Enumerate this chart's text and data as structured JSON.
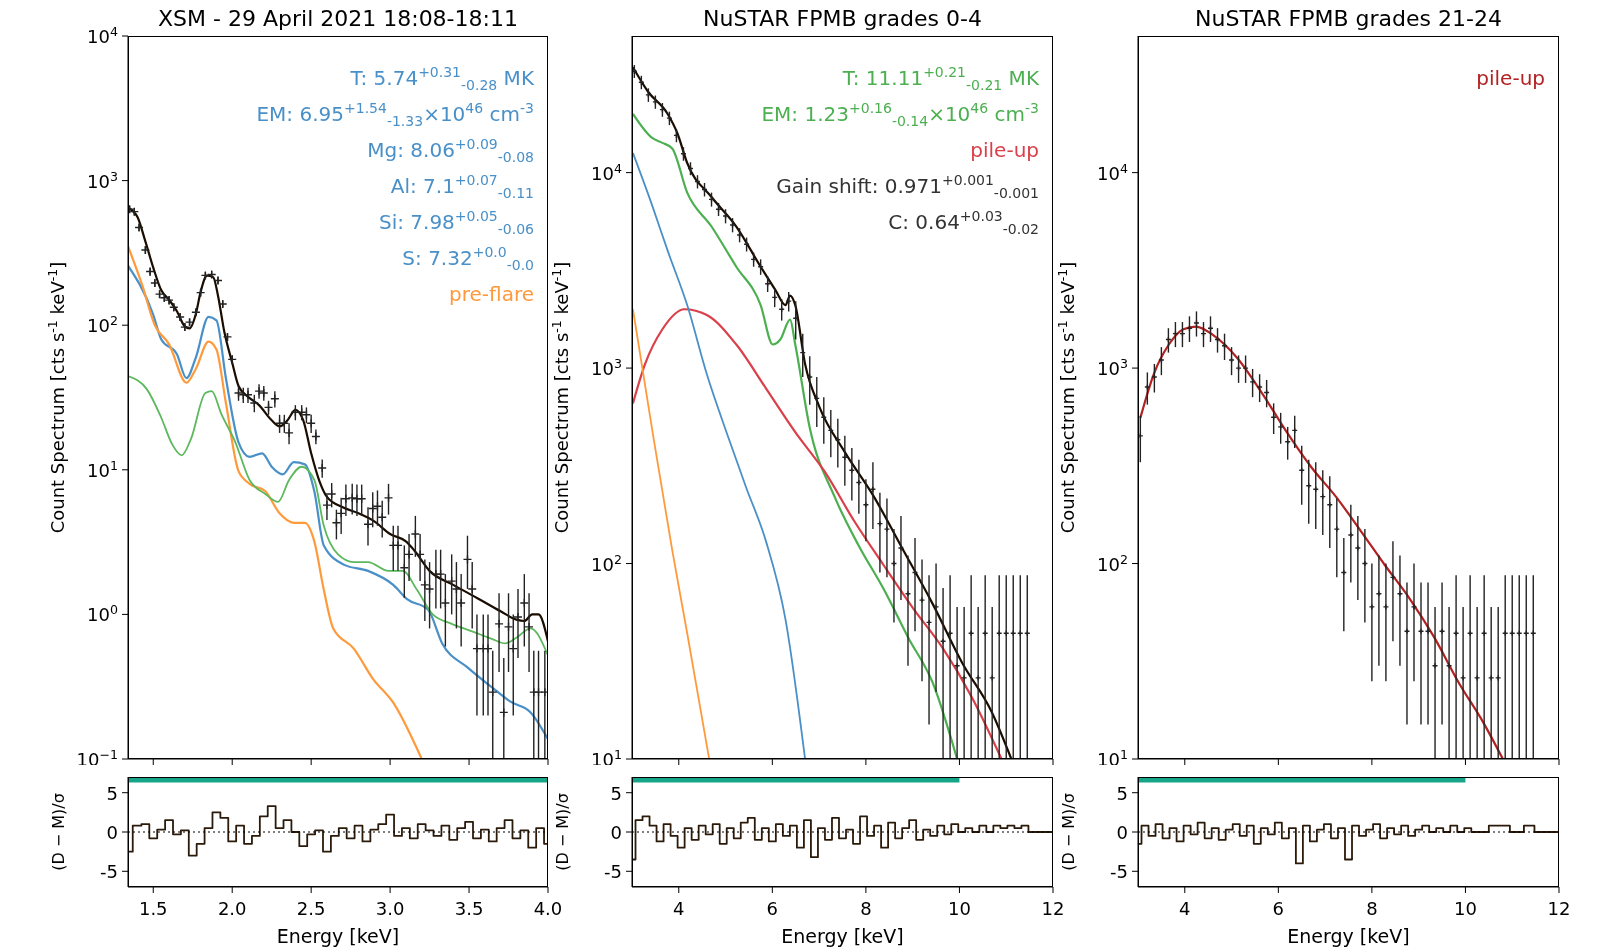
{
  "chart_data": [
    {
      "type": "line",
      "title": "XSM - 29 April 2021 18:08-18:11",
      "ylabel": "Count Spectrum [cts s$^{-1}$ keV$^{-1}$]",
      "log": "y",
      "tick_labels": "y",
      "legend": "top right",
      "xlim": [
        1.34,
        4.0
      ],
      "xticks": [
        1.5,
        2,
        2.5,
        3,
        3.5,
        4
      ],
      "ylim": [
        0.1,
        10000
      ],
      "yticks": [
        {
          "value": 0.1,
          "label": "10$^{−1}$"
        },
        {
          "value": 1,
          "label": "10$^{0}$"
        },
        {
          "value": 10,
          "label": "10$^{1}$"
        },
        {
          "value": 100,
          "label": "10$^{2}$"
        },
        {
          "value": 1000,
          "label": "10$^{3}$"
        },
        {
          "value": 10000,
          "label": "10$^{4}$"
        }
      ],
      "series": [
        {
          "type": "scatter",
          "marker": "cross",
          "color": "#222222",
          "x": [
            1.35,
            1.38,
            1.41,
            1.45,
            1.48,
            1.51,
            1.54,
            1.57,
            1.6,
            1.63,
            1.67,
            1.7,
            1.73,
            1.77,
            1.8,
            1.83,
            1.87,
            1.91,
            1.94,
            1.97,
            2.0,
            2.04,
            2.07,
            2.1,
            2.14,
            2.17,
            2.2,
            2.23,
            2.27,
            2.3,
            2.33,
            2.36,
            2.4,
            2.44,
            2.47,
            2.5,
            2.53,
            2.57,
            2.6,
            2.63,
            2.66,
            2.69,
            2.72,
            2.76,
            2.79,
            2.82,
            2.86,
            2.89,
            2.92,
            2.95,
            2.99,
            3.02,
            3.05,
            3.09,
            3.12,
            3.16,
            3.19,
            3.22,
            3.25,
            3.29,
            3.32,
            3.35,
            3.39,
            3.42,
            3.45,
            3.49,
            3.52,
            3.55,
            3.59,
            3.62,
            3.65,
            3.69,
            3.72,
            3.75,
            3.78,
            3.81,
            3.85,
            3.88,
            3.91,
            3.94,
            3.98
          ],
          "values": [
            634,
            610,
            474,
            331,
            235,
            196,
            164,
            155,
            149,
            133,
            114,
            97,
            105,
            123,
            168,
            221,
            224,
            204,
            140,
            83,
            58,
            34,
            33,
            33,
            29,
            35,
            34,
            27,
            31,
            21,
            21,
            18,
            25,
            25,
            24,
            21,
            17,
            10.3,
            5.7,
            6.8,
            4.3,
            5.0,
            6.3,
            6.4,
            6.3,
            6.3,
            4.2,
            5.4,
            5.6,
            4.7,
            6.4,
            3.0,
            3.0,
            2.1,
            2.6,
            3.6,
            2.6,
            1.6,
            1.5,
            1.9,
            1.9,
            1.2,
            1.7,
            1.5,
            1.2,
            2.4,
            1.5,
            0.58,
            0.58,
            0.58,
            0.29,
            0.86,
            0.21,
            0.82,
            0.58,
            0.96,
            1.2,
            0.82,
            0.29,
            0.29,
            0.29
          ],
          "errors": [
            35,
            35,
            25,
            20,
            15,
            12,
            10,
            10,
            10,
            8,
            7,
            6,
            6,
            7,
            10,
            12,
            12,
            12,
            8,
            5,
            4,
            4,
            4,
            4,
            4,
            4,
            4,
            3,
            4,
            3,
            3,
            3,
            3,
            3,
            3,
            3,
            2,
            1.5,
            1.2,
            1.3,
            1,
            [
              3.6,
              6.4
            ],
            [
              4.8,
              7.9
            ],
            [
              4.9,
              8.0
            ],
            [
              4.8,
              7.9
            ],
            [
              4.8,
              7.9
            ],
            [
              3.0,
              5.5
            ],
            [
              4.0,
              7.0
            ],
            [
              4.1,
              7.2
            ],
            [
              3.4,
              6.1
            ],
            [
              4.9,
              8.0
            ],
            [
              2.0,
              4.1
            ],
            [
              2.0,
              4.1
            ],
            [
              1.3,
              3.0
            ],
            [
              1.7,
              3.6
            ],
            [
              2.5,
              4.8
            ],
            [
              1.7,
              3.6
            ],
            [
              0.9,
              2.4
            ],
            [
              0.8,
              2.3
            ],
            [
              1.1,
              2.8
            ],
            [
              1.1,
              2.8
            ],
            [
              0.6,
              1.9
            ],
            [
              1.0,
              2.6
            ],
            [
              0.8,
              2.3
            ],
            [
              0.6,
              1.9
            ],
            [
              1.5,
              3.5
            ],
            [
              0.8,
              2.3
            ],
            [
              0.2,
              1.0
            ],
            [
              0.2,
              1.0
            ],
            [
              0.2,
              1.0
            ],
            [
              0.1,
              0.56
            ],
            [
              0.4,
              1.4
            ],
            [
              0.1,
              0.5
            ],
            [
              0.4,
              1.4
            ],
            [
              0.2,
              1.0
            ],
            [
              0.5,
              1.5
            ],
            [
              0.6,
              1.9
            ],
            [
              0.4,
              1.4
            ],
            [
              0.1,
              0.56
            ],
            [
              0.1,
              0.56
            ],
            [
              0.1,
              0.56
            ]
          ]
        },
        {
          "color": "#1a0d00",
          "x": [
            1.34,
            1.4,
            1.45,
            1.5,
            1.55,
            1.6,
            1.65,
            1.7,
            1.73,
            1.77,
            1.8,
            1.84,
            1.88,
            1.91,
            1.95,
            2.0,
            2.04,
            2.1,
            2.17,
            2.25,
            2.3,
            2.35,
            2.4,
            2.45,
            2.5,
            2.55,
            2.6,
            2.7,
            2.8,
            2.9,
            3.0,
            3.1,
            3.15,
            3.25,
            3.4,
            3.55,
            3.7,
            3.8,
            3.85,
            3.9,
            3.94,
            4.0
          ],
          "values": [
            650,
            560,
            380,
            250,
            175,
            150,
            125,
            98,
            95,
            120,
            170,
            220,
            215,
            160,
            90,
            55,
            38,
            32,
            28,
            22,
            20,
            22,
            26,
            22,
            13,
            8.5,
            6.5,
            5.5,
            5.0,
            4.4,
            3.6,
            3.2,
            2.8,
            2.0,
            1.6,
            1.3,
            1.05,
            0.92,
            0.9,
            1.0,
            1.0,
            0.65
          ]
        },
        {
          "name": "T: 5.74$^{+0.31}$$_{-0.28}$ MK\nEM: 6.95$^{+1.54}$$_{-1.33}$×10$^{46}$ cm$^{-3}$\nMg: 8.06$^{+0.09}$$_{-0.08}$\nAl: 7.1$^{+0.07}$$_{-0.11}$\nSi: 7.98$^{+0.05}$$_{-0.06}$\nS: 7.32$^{+0.0}$$_{-0.0}$",
          "color": "#4a90c8",
          "x": [
            1.34,
            1.5,
            1.55,
            1.65,
            1.71,
            1.77,
            1.85,
            1.9,
            1.96,
            2.04,
            2.11,
            2.19,
            2.25,
            2.32,
            2.39,
            2.46,
            2.52,
            2.58,
            2.71,
            2.86,
            3.02,
            3.11,
            3.24,
            3.33,
            3.49,
            3.65,
            3.76,
            3.89,
            4.0
          ],
          "values": [
            258,
            118,
            80,
            63,
            43,
            60,
            114,
            108,
            43,
            15.5,
            12.3,
            13,
            10.5,
            9.3,
            11.3,
            10.9,
            7.1,
            3.0,
            2.2,
            2.0,
            1.6,
            1.27,
            1.08,
            0.63,
            0.43,
            0.31,
            0.25,
            0.21,
            0.137
          ]
        },
        {
          "name": "pre-flare",
          "color": "#ff9a3c",
          "x": [
            1.34,
            1.43,
            1.51,
            1.6,
            1.71,
            1.77,
            1.85,
            1.9,
            1.96,
            2.04,
            2.11,
            2.21,
            2.3,
            2.39,
            2.46,
            2.52,
            2.58,
            2.64,
            2.77,
            2.89,
            3.02,
            3.2
          ],
          "values": [
            352,
            189,
            100,
            74,
            40,
            50,
            77,
            68,
            29,
            9.8,
            8.0,
            7.1,
            5.0,
            4.3,
            4.3,
            3.2,
            1.48,
            0.8,
            0.58,
            0.36,
            0.245,
            0.1
          ]
        },
        {
          "color": "#5cb85c",
          "x": [
            1.34,
            1.46,
            1.55,
            1.62,
            1.68,
            1.74,
            1.83,
            1.87,
            1.93,
            2.02,
            2.11,
            2.21,
            2.29,
            2.36,
            2.44,
            2.52,
            2.58,
            2.67,
            2.77,
            2.86,
            2.99,
            3.08,
            3.17,
            3.27,
            3.39,
            3.51,
            3.64,
            3.73,
            3.8,
            3.89,
            4.0
          ],
          "values": [
            44.5,
            36,
            23,
            15,
            12.6,
            16.5,
            34,
            35,
            24.5,
            15.5,
            8.5,
            6.8,
            6.0,
            8.5,
            10.5,
            8.5,
            4.1,
            2.6,
            2.3,
            2.3,
            2.0,
            2.0,
            1.48,
            1.0,
            0.86,
            0.77,
            0.68,
            0.63,
            0.69,
            0.8,
            0.52
          ]
        }
      ]
    },
    {
      "type": "line",
      "title": "NuSTAR FPMB grades 0-4",
      "ylabel": "Count Spectrum [cts s$^{-1}$ keV$^{-1}$]",
      "log": "y",
      "tick_labels": "y",
      "legend": "top right",
      "xlim": [
        3,
        12
      ],
      "xticks": [
        4,
        6,
        8,
        10,
        12
      ],
      "ylim": [
        10,
        50000
      ],
      "yticks": [
        {
          "value": 10,
          "label": "10$^{1}$"
        },
        {
          "value": 100,
          "label": "10$^{2}$"
        },
        {
          "value": 1000,
          "label": "10$^{3}$"
        },
        {
          "value": 10000,
          "label": "10$^{4}$"
        }
      ],
      "annotations": [
        "Gain shift: 0.971$^{+0.001}$$_{-0.001}$",
        "C: 0.64$^{+0.03}$$_{-0.02}$"
      ],
      "series": [
        {
          "type": "scatter",
          "marker": "cross",
          "color": "#222222",
          "x": [
            3.05,
            3.2,
            3.35,
            3.5,
            3.65,
            3.8,
            3.95,
            4.1,
            4.25,
            4.4,
            4.55,
            4.7,
            4.85,
            5.0,
            5.15,
            5.3,
            5.45,
            5.6,
            5.75,
            5.9,
            6.05,
            6.2,
            6.35,
            6.5,
            6.65,
            6.8,
            6.95,
            7.1,
            7.25,
            7.4,
            7.55,
            7.7,
            7.85,
            8.0,
            8.15,
            8.3,
            8.45,
            8.6,
            8.75,
            8.9,
            9.05,
            9.2,
            9.35,
            9.5,
            9.65,
            9.8,
            9.95,
            10.1,
            10.25,
            10.4,
            10.55,
            10.7,
            10.85,
            11.0,
            11.15,
            11.3,
            11.45
          ],
          "values": [
            33000,
            29000,
            25000,
            23000,
            21000,
            19000,
            15500,
            12500,
            10500,
            9000,
            8200,
            7300,
            6500,
            6000,
            5400,
            4800,
            4300,
            3600,
            3300,
            2700,
            2300,
            2000,
            2200,
            1800,
            1200,
            900,
            700,
            560,
            480,
            430,
            350,
            300,
            260,
            200,
            240,
            160,
            150,
            100,
            120,
            70,
            90,
            65,
            50,
            60,
            40,
            44,
            30,
            26,
            44,
            26,
            44,
            26,
            44,
            44,
            44,
            44,
            44
          ],
          "errors": [
            2500,
            2300,
            2000,
            1800,
            1700,
            1500,
            1200,
            1000,
            800,
            700,
            650,
            600,
            500,
            500,
            450,
            400,
            350,
            300,
            300,
            250,
            250,
            250,
            250,
            400,
            300,
            250,
            200,
            150,
            130,
            120,
            100,
            90,
            80,
            70,
            [
              150,
              330
            ],
            [
              90,
              230
            ],
            [
              85,
              215
            ],
            [
              50,
              150
            ],
            [
              65,
              175
            ],
            [
              30,
              110
            ],
            [
              45,
              135
            ],
            [
              25,
              105
            ],
            [
              15,
              87
            ],
            [
              22,
              100
            ],
            [
              10,
              75
            ],
            [
              10,
              87
            ],
            [
              10,
              60
            ],
            [
              10,
              60
            ],
            [
              10,
              87
            ],
            [
              10,
              60
            ],
            [
              10,
              87
            ],
            [
              10,
              60
            ],
            [
              10,
              87
            ],
            [
              10,
              87
            ],
            [
              10,
              87
            ],
            [
              10,
              87
            ],
            [
              10,
              87
            ]
          ]
        },
        {
          "color": "#1a0d00",
          "x": [
            3.02,
            3.34,
            3.76,
            3.97,
            4.18,
            4.7,
            5.23,
            5.75,
            6.07,
            6.28,
            6.38,
            6.49,
            6.7,
            7.01,
            7.54,
            8.17,
            8.8,
            9.43,
            10.06,
            10.69,
            11.11
          ],
          "values": [
            34600,
            26000,
            20000,
            15900,
            11200,
            7500,
            5300,
            3300,
            2500,
            2100,
            2350,
            2100,
            1050,
            630,
            375,
            220,
            117,
            62,
            31,
            17.4,
            10
          ]
        },
        {
          "name": "T: 11.11$^{+0.21}$$_{-0.21}$ MK\nEM: 1.23$^{+0.16}$$_{-0.14}$×10$^{46}$ cm$^{-3}$",
          "color": "#4caf50",
          "x": [
            3.02,
            3.44,
            3.65,
            3.86,
            4.18,
            4.7,
            5.23,
            5.75,
            6.01,
            6.17,
            6.38,
            6.49,
            6.8,
            7.33,
            7.85,
            8.38,
            8.9,
            9.43,
            9.95
          ],
          "values": [
            20000,
            15000,
            14200,
            13300,
            7900,
            5300,
            3300,
            2100,
            1320,
            1400,
            1770,
            1320,
            495,
            220,
            123,
            74,
            42,
            24.5,
            10
          ]
        },
        {
          "name": "pile-up",
          "color": "#d9404a",
          "x": [
            3.02,
            3.28,
            3.65,
            4.12,
            4.6,
            5.23,
            5.86,
            6.49,
            7.12,
            7.75,
            8.38,
            9.01,
            9.64,
            10.27,
            10.9
          ],
          "values": [
            660,
            1050,
            1580,
            2000,
            1870,
            1320,
            790,
            470,
            295,
            165,
            98,
            59,
            37,
            20.6,
            10
          ]
        },
        {
          "color": "#4a90c8",
          "x": [
            3.02,
            3.44,
            3.76,
            4.18,
            4.6,
            5.02,
            5.44,
            5.86,
            6.28,
            6.7
          ],
          "values": [
            12600,
            6700,
            4000,
            2100,
            930,
            470,
            245,
            131,
            52,
            10
          ]
        },
        {
          "color": "#ff9a3c",
          "x": [
            3.02,
            3.44,
            3.86,
            4.18,
            4.65
          ],
          "values": [
            2000,
            470,
            117,
            44,
            10
          ]
        }
      ]
    },
    {
      "type": "line",
      "title": "NuSTAR FPMB grades 21-24",
      "ylabel": "Count Spectrum [cts s$^{-1}$ keV$^{-1}$]",
      "log": "y",
      "tick_labels": "y",
      "legend": "top right",
      "xlim": [
        3,
        12
      ],
      "xticks": [
        4,
        6,
        8,
        10,
        12
      ],
      "ylim": [
        10,
        50000
      ],
      "yticks": [
        {
          "value": 10,
          "label": "10$^{1}$"
        },
        {
          "value": 100,
          "label": "10$^{2}$"
        },
        {
          "value": 1000,
          "label": "10$^{3}$"
        },
        {
          "value": 10000,
          "label": "10$^{4}$"
        }
      ],
      "series": [
        {
          "type": "scatter",
          "marker": "cross",
          "color": "#222222",
          "x": [
            3.05,
            3.2,
            3.35,
            3.5,
            3.65,
            3.8,
            3.95,
            4.1,
            4.25,
            4.4,
            4.55,
            4.7,
            4.85,
            5.0,
            5.15,
            5.3,
            5.45,
            5.6,
            5.75,
            5.9,
            6.05,
            6.2,
            6.35,
            6.5,
            6.65,
            6.8,
            6.95,
            7.1,
            7.25,
            7.4,
            7.55,
            7.7,
            7.85,
            8.0,
            8.15,
            8.3,
            8.45,
            8.6,
            8.75,
            8.9,
            9.05,
            9.2,
            9.35,
            9.5,
            9.65,
            9.8,
            9.95,
            10.1,
            10.25,
            10.4,
            10.55,
            10.7,
            10.85,
            11.0,
            11.15,
            11.3,
            11.45
          ],
          "values": [
            450,
            800,
            900,
            1100,
            1400,
            1500,
            1500,
            1600,
            1700,
            1500,
            1600,
            1400,
            1300,
            1100,
            1000,
            1000,
            850,
            800,
            750,
            560,
            500,
            420,
            480,
            300,
            250,
            240,
            220,
            200,
            150,
            90,
            140,
            120,
            100,
            60,
            70,
            60,
            85,
            70,
            45,
            60,
            45,
            45,
            30,
            45,
            30,
            44,
            26,
            44,
            26,
            44,
            26,
            26,
            44,
            44,
            44,
            44,
            44
          ],
          "errors": [
            120,
            150,
            150,
            180,
            200,
            220,
            220,
            240,
            250,
            220,
            240,
            200,
            200,
            180,
            160,
            160,
            140,
            130,
            120,
            100,
            90,
            80,
            90,
            [
              200,
              400
            ],
            [
              160,
              340
            ],
            [
              150,
              330
            ],
            [
              140,
              300
            ],
            [
              120,
              280
            ],
            [
              85,
              215
            ],
            [
              45,
              135
            ],
            [
              80,
              200
            ],
            [
              65,
              175
            ],
            [
              50,
              150
            ],
            [
              25,
              100
            ],
            [
              30,
              110
            ],
            [
              25,
              100
            ],
            [
              40,
              130
            ],
            [
              30,
              110
            ],
            [
              15,
              80
            ],
            [
              25,
              100
            ],
            [
              15,
              80
            ],
            [
              15,
              80
            ],
            [
              10,
              60
            ],
            [
              15,
              80
            ],
            [
              10,
              60
            ],
            [
              10,
              87
            ],
            [
              10,
              60
            ],
            [
              10,
              87
            ],
            [
              10,
              60
            ],
            [
              10,
              87
            ],
            [
              10,
              60
            ],
            [
              10,
              60
            ],
            [
              10,
              87
            ],
            [
              10,
              87
            ],
            [
              10,
              87
            ],
            [
              10,
              87
            ],
            [
              10,
              87
            ]
          ]
        },
        {
          "name": "pile-up",
          "color": "#b22222",
          "x": [
            3.05,
            3.34,
            3.66,
            3.97,
            4.24,
            4.6,
            5.13,
            5.65,
            6.18,
            6.71,
            7.23,
            7.76,
            8.28,
            8.81,
            9.33,
            9.86,
            10.38,
            10.8
          ],
          "values": [
            556,
            935,
            1320,
            1580,
            1630,
            1480,
            1120,
            745,
            470,
            310,
            220,
            147,
            98,
            66,
            42,
            24.5,
            15.4,
            10
          ]
        }
      ]
    },
    {
      "type": "step",
      "xlabel": "Energy [keV]",
      "ylabel": "(D − M)/σ",
      "xlim": [
        1.34,
        4.0
      ],
      "xticks": [
        1.5,
        {
          "value": 2,
          "label": "2.0"
        },
        2.5,
        {
          "value": 3,
          "label": "3.0"
        },
        3.5,
        {
          "value": 4,
          "label": "4.0"
        }
      ],
      "ylim": [
        -7,
        7
      ],
      "yticks": [
        -5,
        0,
        5
      ],
      "ref_lines": [
        {
          "axis": "y",
          "value": 0,
          "color": "#000000",
          "line_style": "dotted"
        }
      ],
      "bands": [
        {
          "axis": "x",
          "from": 1.34,
          "to": 4.0,
          "color": "#17a589"
        }
      ],
      "series": [
        {
          "color": "#2b1a0a",
          "x": [
            1.34,
            1.4,
            1.45,
            1.5,
            1.55,
            1.6,
            1.65,
            1.7,
            1.75,
            1.8,
            1.85,
            1.9,
            1.95,
            2.0,
            2.05,
            2.1,
            2.15,
            2.2,
            2.25,
            2.3,
            2.35,
            2.4,
            2.45,
            2.5,
            2.55,
            2.6,
            2.65,
            2.7,
            2.75,
            2.8,
            2.85,
            2.9,
            2.95,
            3.0,
            3.05,
            3.1,
            3.15,
            3.2,
            3.25,
            3.3,
            3.35,
            3.4,
            3.45,
            3.5,
            3.55,
            3.6,
            3.65,
            3.7,
            3.75,
            3.8,
            3.85,
            3.9,
            3.95,
            4.0
          ],
          "values": [
            -2.5,
            0.8,
            1.0,
            -0.8,
            0.3,
            1.5,
            -0.3,
            0.2,
            -3.0,
            -1.5,
            0.5,
            2.5,
            1.8,
            -1.2,
            0.8,
            -1.5,
            -0.5,
            2.0,
            3.3,
            0.5,
            1.5,
            0,
            -1.8,
            -0.3,
            0.2,
            -2.5,
            -0.5,
            0.5,
            -0.8,
            0.8,
            -1.2,
            0.3,
            1.0,
            2.2,
            -0.5,
            0.5,
            -0.8,
            1.0,
            0.2,
            -0.5,
            0.8,
            -1.0,
            0.5,
            1.3,
            -0.8,
            0.3,
            -1.2,
            0.5,
            1.5,
            -0.8,
            0.2,
            -2.0,
            0.5,
            -1.5
          ]
        }
      ]
    },
    {
      "type": "step",
      "xlabel": "Energy [keV]",
      "ylabel": "(D − M)/σ",
      "xlim": [
        3,
        12
      ],
      "xticks": [
        4,
        6,
        8,
        10,
        12
      ],
      "ylim": [
        -7,
        7
      ],
      "yticks": [
        -5,
        0,
        5
      ],
      "ref_lines": [
        {
          "axis": "y",
          "value": 0,
          "color": "#000000",
          "line_style": "dotted"
        }
      ],
      "bands": [
        {
          "axis": "x",
          "from": 3,
          "to": 10,
          "color": "#17a589"
        }
      ],
      "series": [
        {
          "color": "#2b1a0a",
          "x": [
            3.0,
            3.15,
            3.3,
            3.45,
            3.6,
            3.75,
            3.9,
            4.05,
            4.2,
            4.35,
            4.5,
            4.65,
            4.8,
            4.95,
            5.1,
            5.25,
            5.4,
            5.55,
            5.7,
            5.85,
            6.0,
            6.15,
            6.3,
            6.45,
            6.6,
            6.75,
            6.9,
            7.05,
            7.2,
            7.35,
            7.5,
            7.65,
            7.8,
            7.95,
            8.1,
            8.25,
            8.4,
            8.55,
            8.7,
            8.85,
            9.0,
            9.15,
            9.3,
            9.45,
            9.6,
            9.75,
            9.9,
            10.05,
            10.2,
            10.35,
            10.5,
            10.65,
            10.8,
            10.95,
            11.1,
            11.25,
            11.4,
            11.55,
            12.0
          ],
          "values": [
            -3.5,
            1.5,
            2.0,
            0.8,
            -1.2,
            1.0,
            -0.5,
            -2.0,
            0.5,
            -1.0,
            0.8,
            -0.3,
            1.0,
            -1.5,
            0.5,
            -0.8,
            1.2,
            1.8,
            -1.0,
            0.5,
            -1.2,
            1.0,
            -0.5,
            0.8,
            -2.0,
            1.5,
            -3.2,
            0.5,
            -1.0,
            1.8,
            -0.8,
            0.3,
            -1.5,
            2.0,
            -0.5,
            0.8,
            -2.0,
            1.2,
            -0.8,
            0.5,
            1.5,
            -1.0,
            0.3,
            -0.5,
            0.8,
            -0.3,
            1.0,
            0,
            0.5,
            0,
            0.8,
            0,
            0.8,
            0.5,
            0.8,
            0.5,
            0.8,
            0,
            0
          ]
        }
      ]
    },
    {
      "type": "step",
      "xlabel": "Energy [keV]",
      "ylabel": "(D − M)/σ",
      "xlim": [
        3,
        12
      ],
      "xticks": [
        4,
        6,
        8,
        10,
        12
      ],
      "ylim": [
        -7,
        7
      ],
      "yticks": [
        -5,
        0,
        5
      ],
      "ref_lines": [
        {
          "axis": "y",
          "value": 0,
          "color": "#000000",
          "line_style": "dotted"
        }
      ],
      "bands": [
        {
          "axis": "x",
          "from": 3,
          "to": 10,
          "color": "#17a589"
        }
      ],
      "series": [
        {
          "color": "#2b1a0a",
          "x": [
            3.0,
            3.15,
            3.3,
            3.45,
            3.6,
            3.75,
            3.9,
            4.05,
            4.2,
            4.35,
            4.5,
            4.65,
            4.8,
            4.95,
            5.1,
            5.25,
            5.4,
            5.55,
            5.7,
            5.85,
            6.0,
            6.15,
            6.3,
            6.45,
            6.6,
            6.75,
            6.9,
            7.05,
            7.2,
            7.35,
            7.5,
            7.65,
            7.8,
            7.95,
            8.1,
            8.25,
            8.4,
            8.55,
            8.7,
            8.85,
            9.0,
            9.15,
            9.3,
            9.45,
            9.6,
            9.75,
            9.9,
            10.05,
            10.2,
            10.8,
            11.1,
            11.4,
            11.55,
            12.0
          ],
          "values": [
            -1.5,
            0.8,
            -0.5,
            1.0,
            -0.8,
            0.5,
            -1.2,
            0.8,
            -0.3,
            1.2,
            -0.8,
            0.5,
            -1.0,
            0.3,
            1.0,
            -0.5,
            0.8,
            -1.5,
            0.5,
            -0.3,
            1.2,
            -0.8,
            0.5,
            -4.0,
            0.8,
            -1.2,
            0.3,
            1.0,
            -0.8,
            0.5,
            -3.5,
            0.8,
            -0.5,
            0.3,
            1.0,
            -0.8,
            0.5,
            -0.3,
            0.8,
            -0.5,
            0.3,
            0.8,
            0,
            0.5,
            0,
            0.8,
            0,
            0.5,
            0,
            0.8,
            0,
            0.8,
            0,
            0
          ]
        }
      ]
    }
  ]
}
